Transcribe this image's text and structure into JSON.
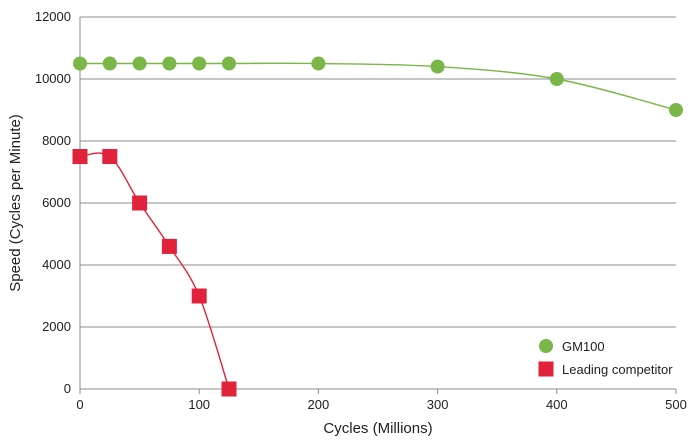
{
  "chart_data": {
    "type": "line",
    "title": "",
    "xlabel": "Cycles (Millions)",
    "ylabel": "Speed (Cycles per Minute)",
    "xlim": [
      0,
      500
    ],
    "ylim": [
      0,
      12000
    ],
    "x_ticks": [
      0,
      100,
      200,
      300,
      400,
      500
    ],
    "y_ticks": [
      0,
      2000,
      4000,
      6000,
      8000,
      10000,
      12000
    ],
    "grid": "horizontal",
    "legend_position": "bottom-right",
    "series": [
      {
        "name": "GM100",
        "marker": "circle",
        "color": "#7ab648",
        "x": [
          0,
          25,
          50,
          75,
          100,
          125,
          200,
          300,
          400,
          500
        ],
        "y": [
          10500,
          10500,
          10500,
          10500,
          10500,
          10500,
          10500,
          10400,
          10000,
          9000
        ]
      },
      {
        "name": "Leading competitor",
        "marker": "square",
        "color": "#e0223a",
        "x": [
          0,
          25,
          50,
          75,
          100,
          125
        ],
        "y": [
          7500,
          7500,
          6000,
          4600,
          3000,
          0
        ]
      }
    ]
  }
}
